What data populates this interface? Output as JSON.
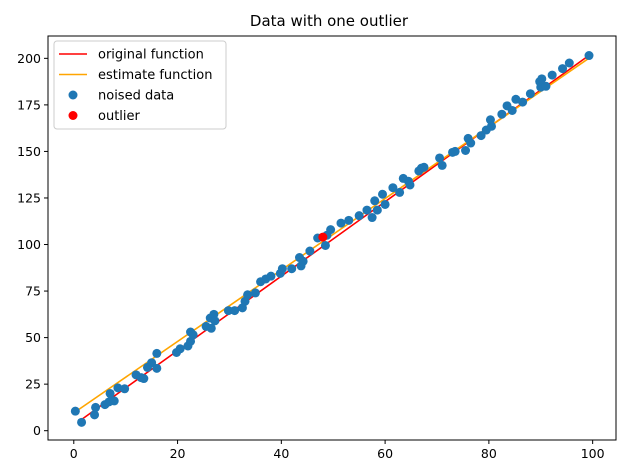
{
  "chart_data": {
    "type": "scatter",
    "title": "Data with one outlier",
    "xlabel": "",
    "ylabel": "",
    "xlim": [
      -4.97,
      104.5
    ],
    "ylim": [
      -5.0,
      212.0
    ],
    "xticks": [
      0,
      20,
      40,
      60,
      80,
      100
    ],
    "yticks": [
      0,
      25,
      50,
      75,
      100,
      125,
      150,
      175,
      200
    ],
    "grid": false,
    "legend_position": "top-left",
    "series": [
      {
        "name": "original function",
        "kind": "line",
        "color": "#ff0000",
        "x": [
          1.0,
          99.5
        ],
        "y": [
          5.0,
          202.0
        ]
      },
      {
        "name": "estimate function",
        "kind": "line",
        "color": "#ffa500",
        "x": [
          0.5,
          99.5
        ],
        "y": [
          10.5,
          200.5
        ]
      },
      {
        "name": "noised data",
        "kind": "scatter",
        "color": "#1f77b4",
        "points": [
          [
            0.3,
            10.5
          ],
          [
            1.5,
            4.5
          ],
          [
            4.0,
            8.5
          ],
          [
            4.2,
            12.5
          ],
          [
            6.0,
            14.0
          ],
          [
            6.8,
            15.5
          ],
          [
            7.0,
            20.0
          ],
          [
            7.8,
            16.0
          ],
          [
            8.5,
            23.0
          ],
          [
            9.8,
            22.5
          ],
          [
            12.0,
            30.0
          ],
          [
            13.0,
            28.5
          ],
          [
            13.5,
            28.0
          ],
          [
            14.2,
            34.0
          ],
          [
            15.0,
            36.5
          ],
          [
            16.0,
            41.5
          ],
          [
            16.0,
            33.5
          ],
          [
            19.8,
            42.0
          ],
          [
            20.5,
            44.0
          ],
          [
            22.0,
            45.5
          ],
          [
            22.5,
            48.0
          ],
          [
            22.5,
            53.0
          ],
          [
            23.0,
            51.5
          ],
          [
            25.5,
            56.0
          ],
          [
            26.3,
            60.5
          ],
          [
            26.5,
            55.0
          ],
          [
            27.0,
            62.5
          ],
          [
            27.2,
            59.0
          ],
          [
            29.8,
            64.5
          ],
          [
            31.0,
            64.5
          ],
          [
            32.5,
            66.0
          ],
          [
            33.0,
            69.5
          ],
          [
            33.5,
            73.0
          ],
          [
            35.0,
            74.0
          ],
          [
            36.0,
            80.0
          ],
          [
            37.0,
            81.5
          ],
          [
            38.0,
            83.0
          ],
          [
            39.8,
            84.5
          ],
          [
            40.2,
            87.0
          ],
          [
            42.0,
            87.0
          ],
          [
            43.5,
            93.0
          ],
          [
            43.8,
            88.5
          ],
          [
            44.2,
            91.0
          ],
          [
            45.5,
            96.5
          ],
          [
            47.0,
            103.5
          ],
          [
            48.5,
            99.5
          ],
          [
            48.8,
            105.0
          ],
          [
            49.5,
            108.0
          ],
          [
            51.5,
            111.5
          ],
          [
            53.0,
            113.0
          ],
          [
            55.0,
            115.5
          ],
          [
            56.5,
            118.5
          ],
          [
            57.5,
            114.5
          ],
          [
            58.0,
            123.5
          ],
          [
            58.5,
            118.5
          ],
          [
            59.5,
            127.0
          ],
          [
            60.0,
            121.5
          ],
          [
            61.5,
            130.5
          ],
          [
            62.8,
            128.0
          ],
          [
            63.5,
            135.5
          ],
          [
            64.5,
            134.0
          ],
          [
            64.8,
            132.0
          ],
          [
            66.5,
            139.5
          ],
          [
            67.0,
            141.0
          ],
          [
            67.5,
            141.5
          ],
          [
            70.5,
            146.5
          ],
          [
            71.0,
            142.5
          ],
          [
            73.0,
            149.5
          ],
          [
            73.5,
            150.0
          ],
          [
            75.5,
            150.5
          ],
          [
            76.0,
            157.0
          ],
          [
            76.5,
            154.5
          ],
          [
            78.5,
            158.5
          ],
          [
            79.5,
            161.5
          ],
          [
            80.3,
            167.0
          ],
          [
            80.5,
            163.5
          ],
          [
            82.5,
            170.0
          ],
          [
            83.5,
            174.5
          ],
          [
            84.5,
            172.0
          ],
          [
            85.2,
            178.0
          ],
          [
            86.5,
            176.5
          ],
          [
            88.0,
            181.0
          ],
          [
            89.8,
            187.5
          ],
          [
            90.0,
            184.5
          ],
          [
            90.2,
            189.0
          ],
          [
            91.0,
            185.0
          ],
          [
            92.2,
            191.0
          ],
          [
            94.2,
            194.5
          ],
          [
            95.5,
            197.5
          ],
          [
            99.3,
            201.5
          ]
        ]
      },
      {
        "name": "outlier",
        "kind": "scatter",
        "color": "#ff0000",
        "points": [
          [
            48.0,
            104.0
          ]
        ]
      }
    ]
  }
}
